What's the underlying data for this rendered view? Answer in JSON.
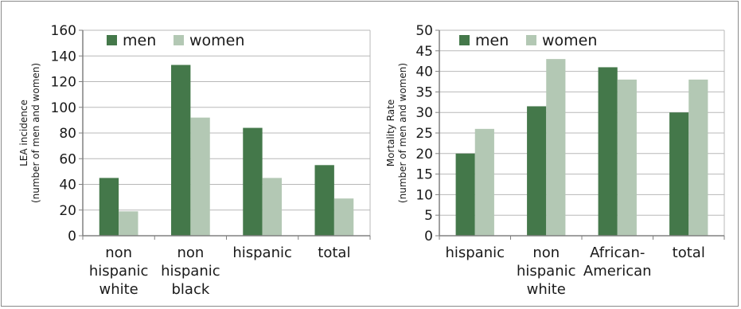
{
  "colors": {
    "men": "#44784a",
    "women": "#b3c8b4",
    "axis": "#808080",
    "grid": "#b8b8b8"
  },
  "chart_data": [
    {
      "type": "bar",
      "categories": [
        [
          "non",
          "hispanic",
          "white"
        ],
        [
          "non",
          "hispanic",
          "black"
        ],
        [
          "hispanic"
        ],
        [
          "total"
        ]
      ],
      "series": [
        {
          "name": "men",
          "values": [
            45,
            133,
            84,
            55
          ]
        },
        {
          "name": "women",
          "values": [
            19,
            92,
            45,
            29
          ]
        }
      ],
      "ylabel": [
        "LEA incidence",
        "(number of men and women)"
      ],
      "ylim": [
        0,
        160
      ],
      "yticks": [
        "0",
        "20",
        "40",
        "60",
        "80",
        "100",
        "120",
        "140",
        "160"
      ],
      "grid": true,
      "legend": "top-left"
    },
    {
      "type": "bar",
      "categories": [
        [
          "hispanic"
        ],
        [
          "non",
          "hispanic",
          "white"
        ],
        [
          "African-",
          "American"
        ],
        [
          "total"
        ]
      ],
      "series": [
        {
          "name": "men",
          "values": [
            20,
            31.5,
            41,
            30
          ]
        },
        {
          "name": "women",
          "values": [
            26,
            43,
            38,
            38
          ]
        }
      ],
      "ylabel": [
        "Mortality Rate",
        "(number of men and women)"
      ],
      "ylim": [
        0,
        50
      ],
      "yticks": [
        "0",
        "5",
        "10",
        "15",
        "20",
        "25",
        "30",
        "35",
        "40",
        "45",
        "50"
      ],
      "grid": true,
      "legend": "top-left"
    }
  ]
}
